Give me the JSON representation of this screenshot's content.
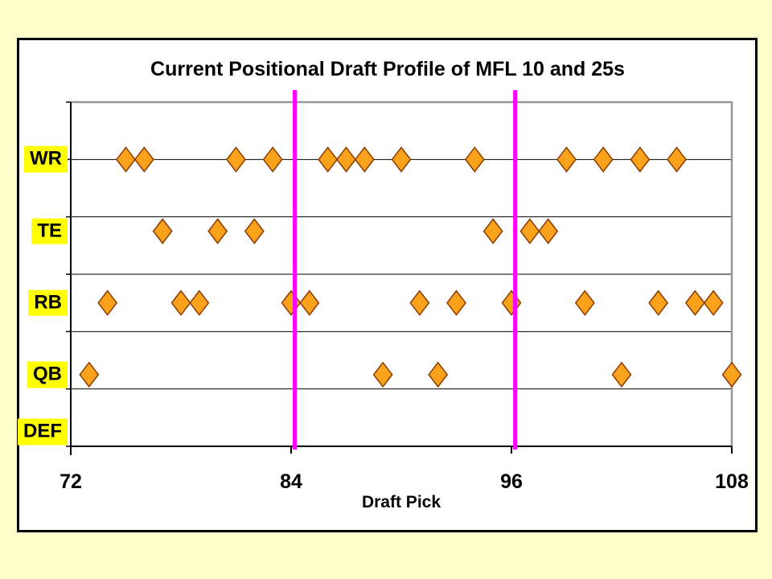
{
  "slide": {
    "background_color": "#FFFFCC",
    "panel_background": "#FFFFFF",
    "panel_border_color": "#000000"
  },
  "chart_data": {
    "type": "scatter",
    "title": "Current Positional Draft Profile of MFL 10 and 25s",
    "xlabel": "Draft Pick",
    "xlim": [
      72,
      108
    ],
    "x_ticks": [
      72,
      84,
      96,
      108
    ],
    "ylim": [
      0,
      6
    ],
    "grid": "horizontal gridlines at integer y values",
    "legend": "none",
    "categories": [
      {
        "label": "WR",
        "y": 5,
        "picks": [
          75,
          76,
          81,
          83,
          86,
          87,
          88,
          90,
          94,
          99,
          101,
          103,
          105
        ]
      },
      {
        "label": "TE",
        "y": 3.75,
        "picks": [
          77,
          80,
          82,
          95,
          97,
          98
        ]
      },
      {
        "label": "RB",
        "y": 2.5,
        "picks": [
          74,
          78,
          79,
          84,
          85,
          91,
          93,
          96,
          100,
          104,
          106,
          107
        ]
      },
      {
        "label": "QB",
        "y": 1.25,
        "picks": [
          73,
          89,
          92,
          102,
          108
        ]
      },
      {
        "label": "DEF",
        "y": 0,
        "picks": []
      }
    ],
    "reference_lines_x": [
      84.2,
      96.2
    ],
    "marker": {
      "shape": "diamond",
      "fill": "#FAA21B",
      "stroke": "#8B3A00"
    },
    "colors": {
      "reference_line": "#FF00FF",
      "category_label_highlight": "#FFFF00",
      "gridline": "#000000",
      "plot_border": "#969696",
      "text": "#000000"
    }
  }
}
